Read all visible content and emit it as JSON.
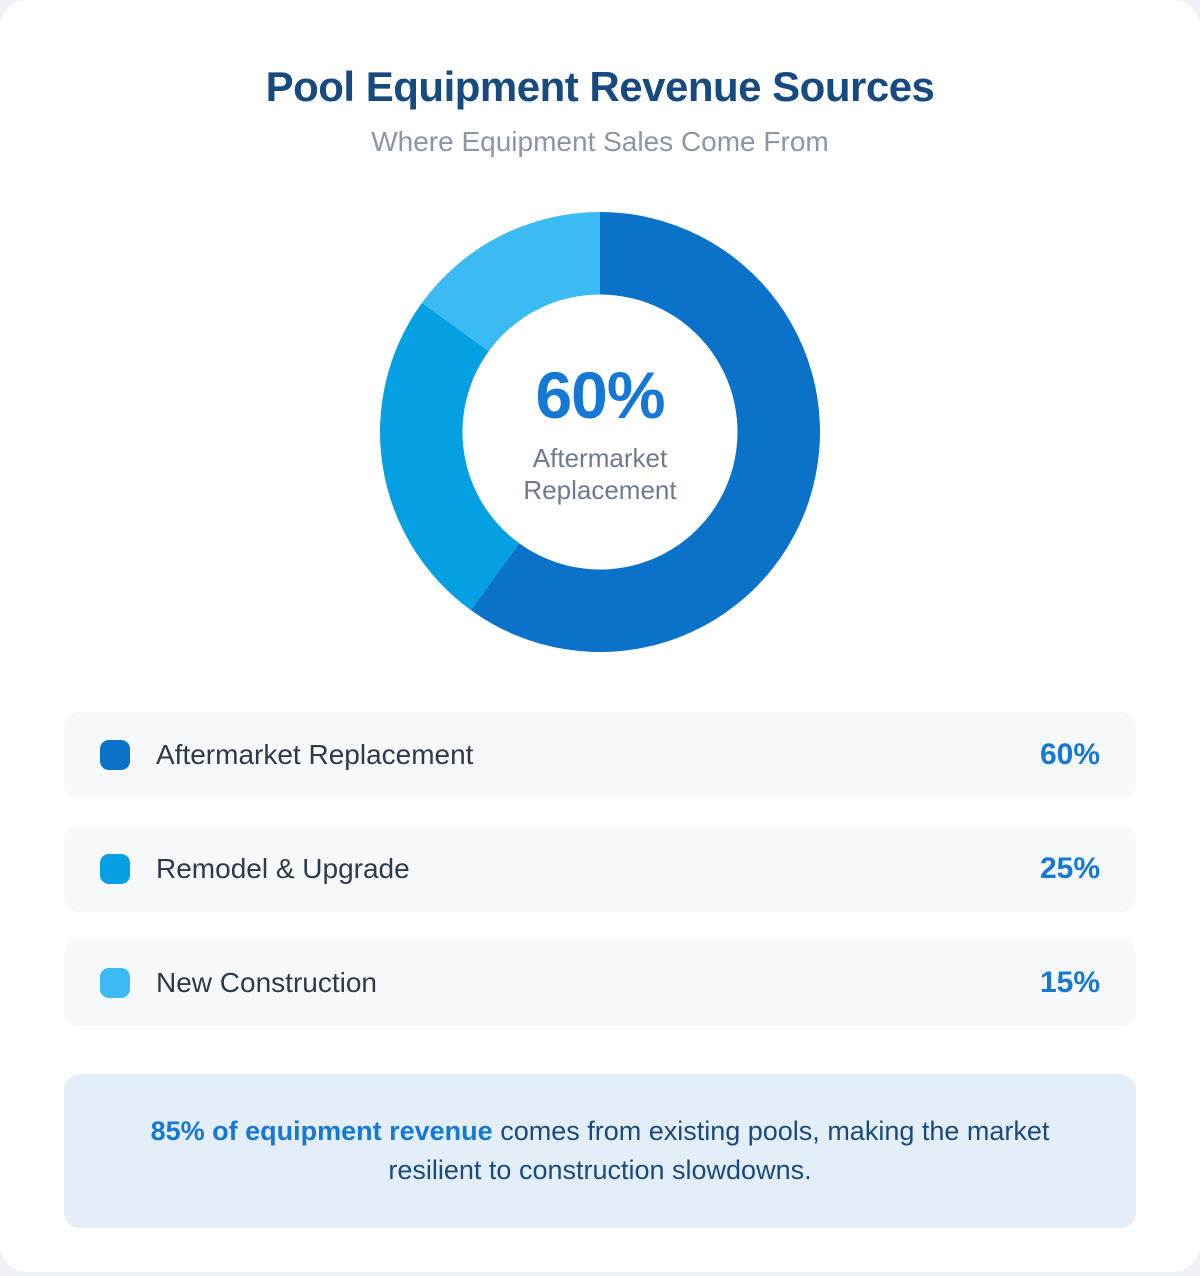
{
  "page": {
    "title": "Pool Equipment Revenue Sources",
    "subtitle": "Where Equipment Sales Come From"
  },
  "chart_data": {
    "type": "pie",
    "title": "Pool Equipment Revenue Sources",
    "subtitle": "Where Equipment Sales Come From",
    "donut": true,
    "start_angle_deg": 0,
    "direction": "clockwise",
    "inner_radius_ratio": 0.625,
    "categories": [
      "Aftermarket Replacement",
      "Remodel & Upgrade",
      "New Construction"
    ],
    "values": [
      60,
      25,
      15
    ],
    "unit": "%",
    "colors": [
      "#0b72c9",
      "#05a0e1",
      "#3cbaf4"
    ],
    "center_label": {
      "value": "60%",
      "line1": "Aftermarket",
      "line2": "Replacement"
    }
  },
  "legend": {
    "items": [
      {
        "label": "Aftermarket Replacement",
        "value": "60%",
        "color": "#0b72c9"
      },
      {
        "label": "Remodel & Upgrade",
        "value": "25%",
        "color": "#05a0e1"
      },
      {
        "label": "New Construction",
        "value": "15%",
        "color": "#3cbaf4"
      }
    ]
  },
  "footnote": {
    "highlight": "85% of equipment revenue",
    "rest": " comes from existing pools, making the market resilient to construction slowdowns."
  },
  "theme": {
    "accent_blue": "#1478d4",
    "title_navy": "#174b80",
    "subtitle_gray": "#8b96a5",
    "row_background": "#f7f8fa",
    "footnote_background": "#e4eef9",
    "card_background": "#ffffff",
    "page_background": "#eef1f5"
  }
}
